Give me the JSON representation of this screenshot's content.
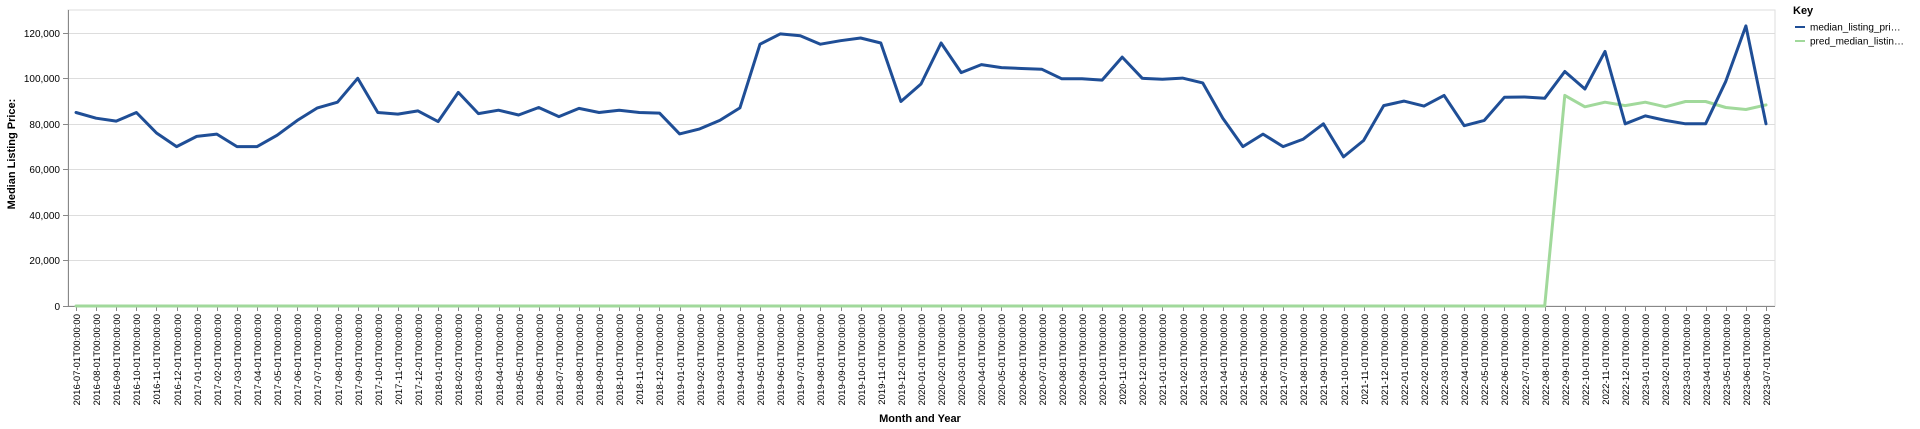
{
  "chart_data": {
    "type": "line",
    "title": "",
    "xlabel": "Month and Year",
    "ylabel": "Median Listing Price:",
    "ylim": [
      0,
      130000
    ],
    "y_ticks": [
      0,
      20000,
      40000,
      60000,
      80000,
      100000,
      120000
    ],
    "y_tick_labels": [
      "0",
      "20,000",
      "40,000",
      "60,000",
      "80,000",
      "100,000",
      "120,000"
    ],
    "grid": true,
    "legend": {
      "title": "Key",
      "placement": "right"
    },
    "x": [
      "2016-07-01T00:00:00",
      "2016-08-01T00:00:00",
      "2016-09-01T00:00:00",
      "2016-10-01T00:00:00",
      "2016-11-01T00:00:00",
      "2016-12-01T00:00:00",
      "2017-01-01T00:00:00",
      "2017-02-01T00:00:00",
      "2017-03-01T00:00:00",
      "2017-04-01T00:00:00",
      "2017-05-01T00:00:00",
      "2017-06-01T00:00:00",
      "2017-07-01T00:00:00",
      "2017-08-01T00:00:00",
      "2017-09-01T00:00:00",
      "2017-10-01T00:00:00",
      "2017-11-01T00:00:00",
      "2017-12-01T00:00:00",
      "2018-01-01T00:00:00",
      "2018-02-01T00:00:00",
      "2018-03-01T00:00:00",
      "2018-04-01T00:00:00",
      "2018-05-01T00:00:00",
      "2018-06-01T00:00:00",
      "2018-07-01T00:00:00",
      "2018-08-01T00:00:00",
      "2018-09-01T00:00:00",
      "2018-10-01T00:00:00",
      "2018-11-01T00:00:00",
      "2018-12-01T00:00:00",
      "2019-01-01T00:00:00",
      "2019-02-01T00:00:00",
      "2019-03-01T00:00:00",
      "2019-04-01T00:00:00",
      "2019-05-01T00:00:00",
      "2019-06-01T00:00:00",
      "2019-07-01T00:00:00",
      "2019-08-01T00:00:00",
      "2019-09-01T00:00:00",
      "2019-10-01T00:00:00",
      "2019-11-01T00:00:00",
      "2019-12-01T00:00:00",
      "2020-01-01T00:00:00",
      "2020-02-01T00:00:00",
      "2020-03-01T00:00:00",
      "2020-04-01T00:00:00",
      "2020-05-01T00:00:00",
      "2020-06-01T00:00:00",
      "2020-07-01T00:00:00",
      "2020-08-01T00:00:00",
      "2020-09-01T00:00:00",
      "2020-10-01T00:00:00",
      "2020-11-01T00:00:00",
      "2020-12-01T00:00:00",
      "2021-01-01T00:00:00",
      "2021-02-01T00:00:00",
      "2021-03-01T00:00:00",
      "2021-04-01T00:00:00",
      "2021-05-01T00:00:00",
      "2021-06-01T00:00:00",
      "2021-07-01T00:00:00",
      "2021-08-01T00:00:00",
      "2021-09-01T00:00:00",
      "2021-10-01T00:00:00",
      "2021-11-01T00:00:00",
      "2021-12-01T00:00:00",
      "2022-01-01T00:00:00",
      "2022-02-01T00:00:00",
      "2022-03-01T00:00:00",
      "2022-04-01T00:00:00",
      "2022-05-01T00:00:00",
      "2022-06-01T00:00:00",
      "2022-07-01T00:00:00",
      "2022-08-01T00:00:00",
      "2022-09-01T00:00:00",
      "2022-10-01T00:00:00",
      "2022-11-01T00:00:00",
      "2022-12-01T00:00:00",
      "2023-01-01T00:00:00",
      "2023-02-01T00:00:00",
      "2023-03-01T00:00:00",
      "2023-04-01T00:00:00",
      "2023-05-01T00:00:00",
      "2023-06-01T00:00:00",
      "2023-07-01T00:00:00"
    ],
    "series": [
      {
        "name": "median_listing_pri…",
        "color": "#1f4e96",
        "values": [
          85000,
          82500,
          81200,
          85000,
          76000,
          70000,
          74500,
          75500,
          70000,
          70000,
          75000,
          81500,
          87000,
          89500,
          100000,
          85000,
          84300,
          85700,
          81000,
          93800,
          84500,
          86000,
          83900,
          87200,
          83200,
          86800,
          85000,
          86000,
          85000,
          84700,
          75600,
          77800,
          81500,
          87000,
          115000,
          119500,
          118700,
          115000,
          116500,
          117700,
          115500,
          89800,
          97500,
          115500,
          102500,
          106000,
          104700,
          104300,
          104000,
          99800,
          99800,
          99200,
          109300,
          100000,
          99600,
          100100,
          98000,
          82500,
          70000,
          75500,
          70000,
          73300,
          80000,
          65500,
          72700,
          88000,
          90000,
          87800,
          92500,
          79200,
          81500,
          91700,
          91800,
          91200,
          103000,
          95300,
          111800,
          80000,
          83500,
          81500,
          80000,
          80000,
          98700,
          123000,
          80000
        ]
      },
      {
        "name": "pred_median_listin…",
        "color": "#a1d99b",
        "values": [
          0,
          0,
          0,
          0,
          0,
          0,
          0,
          0,
          0,
          0,
          0,
          0,
          0,
          0,
          0,
          0,
          0,
          0,
          0,
          0,
          0,
          0,
          0,
          0,
          0,
          0,
          0,
          0,
          0,
          0,
          0,
          0,
          0,
          0,
          0,
          0,
          0,
          0,
          0,
          0,
          0,
          0,
          0,
          0,
          0,
          0,
          0,
          0,
          0,
          0,
          0,
          0,
          0,
          0,
          0,
          0,
          0,
          0,
          0,
          0,
          0,
          0,
          0,
          0,
          0,
          0,
          0,
          0,
          0,
          0,
          0,
          0,
          0,
          0,
          92500,
          87500,
          89500,
          88000,
          89500,
          87500,
          89800,
          89800,
          87200,
          86300,
          88300
        ]
      }
    ]
  }
}
